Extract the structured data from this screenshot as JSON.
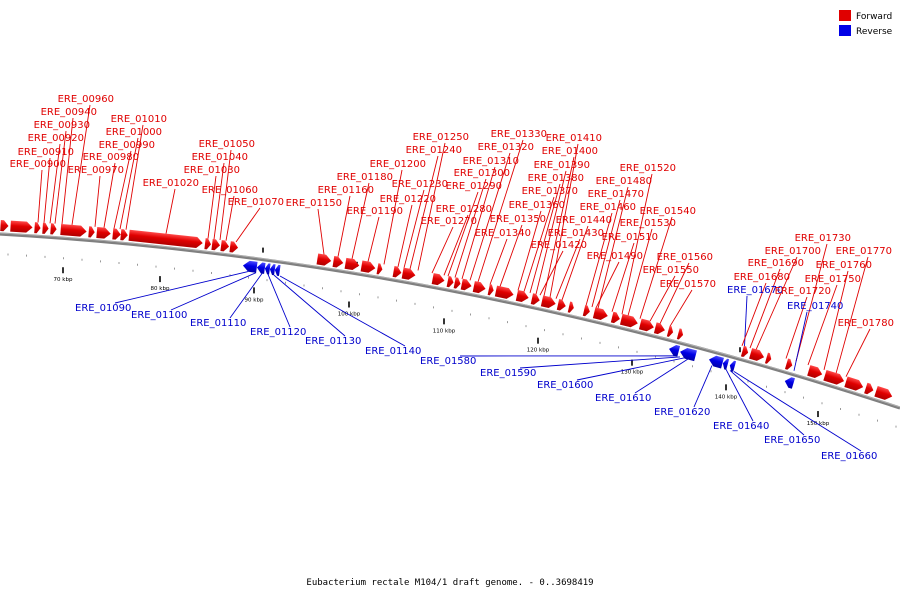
{
  "colors": {
    "forward": "#e00000",
    "reverse": "#0000e6",
    "backbone": "#707070"
  },
  "legend": [
    {
      "label": "Forward",
      "color": "#e00000"
    },
    {
      "label": "Reverse",
      "color": "#0000e6"
    }
  ],
  "scale": {
    "unit": "kbp",
    "major_ticks": [
      "70 kbp",
      "80 kbp",
      "90 kbp",
      "100 kbp",
      "110 kbp",
      "120 kbp",
      "130 kbp",
      "140 kbp",
      "150 kbp"
    ]
  },
  "footer": "Eubacterium rectale M104/1 draft genome. - 0..3698419",
  "genes": [
    {
      "id": "ERE_00900",
      "strand": "+"
    },
    {
      "id": "ERE_00910",
      "strand": "+"
    },
    {
      "id": "ERE_00920",
      "strand": "+"
    },
    {
      "id": "ERE_00930",
      "strand": "+"
    },
    {
      "id": "ERE_00940",
      "strand": "+"
    },
    {
      "id": "ERE_00960",
      "strand": "+"
    },
    {
      "id": "ERE_00970",
      "strand": "+"
    },
    {
      "id": "ERE_00980",
      "strand": "+"
    },
    {
      "id": "ERE_00990",
      "strand": "+"
    },
    {
      "id": "ERE_01000",
      "strand": "+"
    },
    {
      "id": "ERE_01010",
      "strand": "+"
    },
    {
      "id": "ERE_01020",
      "strand": "+"
    },
    {
      "id": "ERE_01030",
      "strand": "+"
    },
    {
      "id": "ERE_01040",
      "strand": "+"
    },
    {
      "id": "ERE_01050",
      "strand": "+"
    },
    {
      "id": "ERE_01060",
      "strand": "+"
    },
    {
      "id": "ERE_01070",
      "strand": "+"
    },
    {
      "id": "ERE_01090",
      "strand": "-"
    },
    {
      "id": "ERE_01100",
      "strand": "-"
    },
    {
      "id": "ERE_01110",
      "strand": "-"
    },
    {
      "id": "ERE_01120",
      "strand": "-"
    },
    {
      "id": "ERE_01130",
      "strand": "-"
    },
    {
      "id": "ERE_01140",
      "strand": "-"
    },
    {
      "id": "ERE_01150",
      "strand": "+"
    },
    {
      "id": "ERE_01160",
      "strand": "+"
    },
    {
      "id": "ERE_01180",
      "strand": "+"
    },
    {
      "id": "ERE_01190",
      "strand": "+"
    },
    {
      "id": "ERE_01200",
      "strand": "+"
    },
    {
      "id": "ERE_01220",
      "strand": "+"
    },
    {
      "id": "ERE_01230",
      "strand": "+"
    },
    {
      "id": "ERE_01240",
      "strand": "+"
    },
    {
      "id": "ERE_01250",
      "strand": "+"
    },
    {
      "id": "ERE_01270",
      "strand": "+"
    },
    {
      "id": "ERE_01280",
      "strand": "+"
    },
    {
      "id": "ERE_01290",
      "strand": "+"
    },
    {
      "id": "ERE_01300",
      "strand": "+"
    },
    {
      "id": "ERE_01310",
      "strand": "+"
    },
    {
      "id": "ERE_01320",
      "strand": "+"
    },
    {
      "id": "ERE_01330",
      "strand": "+"
    },
    {
      "id": "ERE_01340",
      "strand": "+"
    },
    {
      "id": "ERE_01350",
      "strand": "+"
    },
    {
      "id": "ERE_01360",
      "strand": "+"
    },
    {
      "id": "ERE_01370",
      "strand": "+"
    },
    {
      "id": "ERE_01380",
      "strand": "+"
    },
    {
      "id": "ERE_01390",
      "strand": "+"
    },
    {
      "id": "ERE_01400",
      "strand": "+"
    },
    {
      "id": "ERE_01410",
      "strand": "+"
    },
    {
      "id": "ERE_01420",
      "strand": "+"
    },
    {
      "id": "ERE_01430",
      "strand": "+"
    },
    {
      "id": "ERE_01440",
      "strand": "+"
    },
    {
      "id": "ERE_01460",
      "strand": "+"
    },
    {
      "id": "ERE_01470",
      "strand": "+"
    },
    {
      "id": "ERE_01480",
      "strand": "+"
    },
    {
      "id": "ERE_01490",
      "strand": "+"
    },
    {
      "id": "ERE_01510",
      "strand": "+"
    },
    {
      "id": "ERE_01520",
      "strand": "+"
    },
    {
      "id": "ERE_01530",
      "strand": "+"
    },
    {
      "id": "ERE_01540",
      "strand": "+"
    },
    {
      "id": "ERE_01550",
      "strand": "+"
    },
    {
      "id": "ERE_01560",
      "strand": "+"
    },
    {
      "id": "ERE_01570",
      "strand": "+"
    },
    {
      "id": "ERE_01580",
      "strand": "-"
    },
    {
      "id": "ERE_01590",
      "strand": "-"
    },
    {
      "id": "ERE_01600",
      "strand": "-"
    },
    {
      "id": "ERE_01610",
      "strand": "-"
    },
    {
      "id": "ERE_01620",
      "strand": "-"
    },
    {
      "id": "ERE_01640",
      "strand": "-"
    },
    {
      "id": "ERE_01650",
      "strand": "-"
    },
    {
      "id": "ERE_01660",
      "strand": "-"
    },
    {
      "id": "ERE_01670",
      "strand": "-"
    },
    {
      "id": "ERE_01680",
      "strand": "+"
    },
    {
      "id": "ERE_01690",
      "strand": "+"
    },
    {
      "id": "ERE_01700",
      "strand": "+"
    },
    {
      "id": "ERE_01720",
      "strand": "+"
    },
    {
      "id": "ERE_01730",
      "strand": "+"
    },
    {
      "id": "ERE_01740",
      "strand": "-"
    },
    {
      "id": "ERE_01750",
      "strand": "+"
    },
    {
      "id": "ERE_01760",
      "strand": "+"
    },
    {
      "id": "ERE_01770",
      "strand": "+"
    },
    {
      "id": "ERE_01780",
      "strand": "+"
    }
  ]
}
